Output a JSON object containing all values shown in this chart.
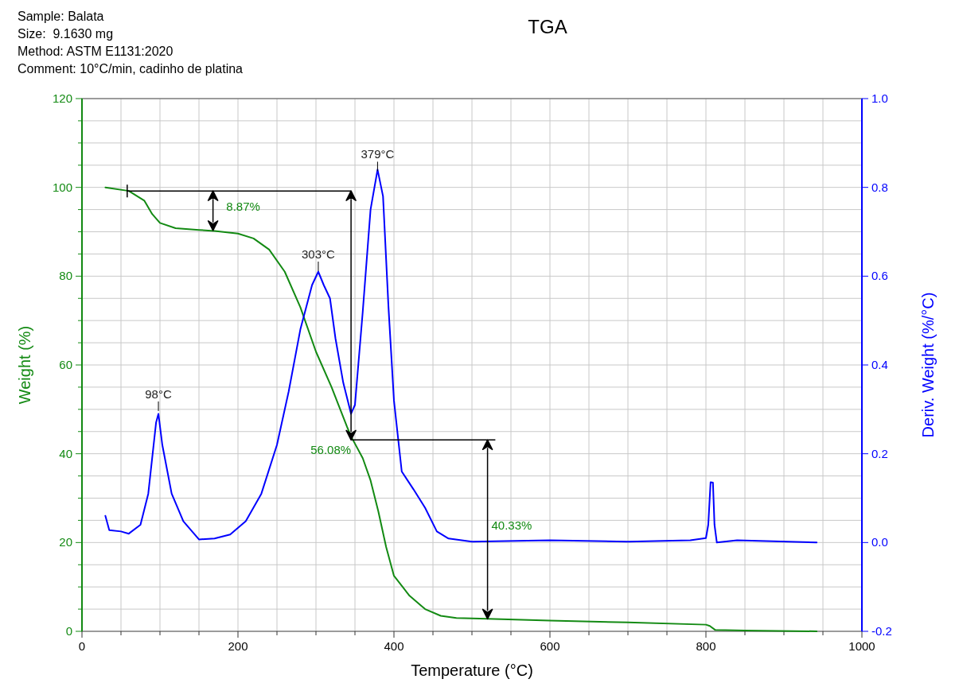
{
  "chart_data": {
    "type": "line",
    "title": "TGA",
    "xlabel": "Temperature (°C)",
    "ylabel": "Weight (%)",
    "y2label": "Deriv. Weight (%/°C)",
    "annotations": [
      "Sample: Balata",
      "Size:  9.1630 mg",
      "Method: ASTM E1131:2020",
      "Comment: 10°C/min, cadinho de platina",
      "98°C",
      "303°C",
      "379°C",
      {
        "text": "8.87%",
        "x": 168,
        "y": 90.3
      },
      {
        "text": "56.08%",
        "x": 345,
        "y": 43.1
      },
      "40.33%"
    ],
    "xlim": [
      0,
      1000
    ],
    "xticks": [
      0,
      {
        "value": 50,
        "label": null
      },
      {
        "value": 100,
        "label": null
      },
      {
        "value": 150,
        "label": null
      },
      200,
      {
        "value": 250,
        "label": null
      },
      {
        "value": 300,
        "label": null
      },
      {
        "value": 350,
        "label": null
      },
      400,
      {
        "value": 450,
        "label": null
      },
      {
        "value": 500,
        "label": null
      },
      {
        "value": 550,
        "label": null
      },
      600,
      {
        "value": 650,
        "label": null
      },
      {
        "value": 700,
        "label": null
      },
      {
        "value": 750,
        "label": null
      },
      800,
      {
        "value": 850,
        "label": null
      },
      {
        "value": 900,
        "label": null
      },
      {
        "value": 950,
        "label": null
      },
      1000
    ],
    "ylim": [
      0,
      120
    ],
    "yticks": [
      0,
      {
        "value": 5,
        "label": null
      },
      {
        "value": 10,
        "label": null
      },
      {
        "value": 15,
        "label": null
      },
      20,
      {
        "value": 25,
        "label": null
      },
      {
        "value": 30,
        "label": null
      },
      {
        "value": 35,
        "label": null
      },
      40,
      {
        "value": 45,
        "label": null
      },
      {
        "value": 50,
        "label": null
      },
      {
        "value": 55,
        "label": null
      },
      60,
      {
        "value": 65,
        "label": null
      },
      {
        "value": 70,
        "label": null
      },
      {
        "value": 75,
        "label": null
      },
      80,
      {
        "value": 85,
        "label": null
      },
      {
        "value": 90,
        "label": null
      },
      {
        "value": 95,
        "label": null
      },
      100,
      {
        "value": 105,
        "label": null
      },
      {
        "value": 110,
        "label": null
      },
      {
        "value": 115,
        "label": null
      },
      120
    ],
    "y2lim": [
      -0.2,
      1.0
    ],
    "y2ticks": [
      {
        "value": -0.2,
        "label": "-0.2"
      },
      {
        "value": 0.0,
        "label": "0.0"
      },
      {
        "value": 0.2,
        "label": "0.2"
      },
      {
        "value": 0.4,
        "label": "0.4"
      },
      {
        "value": 0.6,
        "label": "0.6"
      },
      {
        "value": 0.8,
        "label": "0.8"
      },
      {
        "value": 1.0,
        "label": "1.0"
      }
    ],
    "grid": true,
    "series": [
      {
        "color": "#138a13",
        "x": [
          30,
          60,
          80,
          90,
          100,
          120,
          150,
          170,
          200,
          220,
          240,
          260,
          280,
          300,
          320,
          340,
          345,
          360,
          370,
          380,
          390,
          400,
          420,
          440,
          460,
          480,
          520,
          600,
          700,
          800,
          805,
          812,
          850,
          942
        ],
        "values": [
          100,
          99.2,
          97,
          94,
          92,
          90.8,
          90.4,
          90.2,
          89.6,
          88.5,
          86,
          81,
          73,
          63,
          55,
          46,
          43.9,
          39,
          34,
          27,
          19,
          12.5,
          8,
          5,
          3.5,
          3,
          2.8,
          2.4,
          2.0,
          1.5,
          1.2,
          0.3,
          0.2,
          0
        ]
      },
      {
        "color": "#0000ff",
        "axis": "y2",
        "x": [
          30,
          35,
          50,
          60,
          75,
          85,
          95,
          98,
          103,
          115,
          130,
          150,
          170,
          190,
          210,
          230,
          250,
          265,
          280,
          295,
          303,
          310,
          318,
          325,
          335,
          345,
          350,
          360,
          370,
          379,
          386,
          393,
          400,
          410,
          425,
          440,
          455,
          470,
          500,
          600,
          700,
          780,
          800,
          803,
          806,
          809,
          811,
          814,
          840,
          942
        ],
        "values": [
          0.06,
          0.028,
          0.025,
          0.02,
          0.04,
          0.11,
          0.27,
          0.29,
          0.22,
          0.11,
          0.048,
          0.007,
          0.009,
          0.018,
          0.048,
          0.11,
          0.22,
          0.34,
          0.48,
          0.58,
          0.61,
          0.58,
          0.55,
          0.46,
          0.36,
          0.29,
          0.31,
          0.52,
          0.75,
          0.84,
          0.78,
          0.53,
          0.32,
          0.16,
          0.12,
          0.078,
          0.025,
          0.009,
          0.002,
          0.005,
          0.002,
          0.005,
          0.01,
          0.04,
          0.136,
          0.135,
          0.04,
          0,
          0.005,
          0
        ]
      }
    ]
  }
}
